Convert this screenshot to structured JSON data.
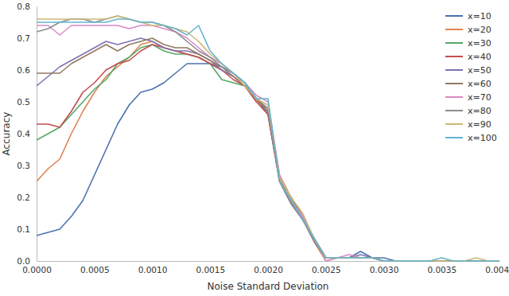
{
  "chart_data": {
    "type": "line",
    "x_label": "Noise Standard Deviation",
    "y_label": "Accuracy",
    "x": [
      0,
      0.0001,
      0.0002,
      0.0003,
      0.0004,
      0.0005,
      0.0006,
      0.0007,
      0.0008,
      0.0009,
      0.001,
      0.0011,
      0.0012,
      0.0013,
      0.0014,
      0.0015,
      0.0016,
      0.0017,
      0.0018,
      0.0019,
      0.002,
      0.0021,
      0.0022,
      0.0023,
      0.0024,
      0.0025,
      0.0026,
      0.0027,
      0.0028,
      0.0029,
      0.003,
      0.0031,
      0.0032,
      0.0033,
      0.0034,
      0.0035,
      0.0036,
      0.0037,
      0.0038,
      0.0039,
      0.004
    ],
    "xlim": [
      0,
      0.004
    ],
    "xticks": [
      {
        "value": 0,
        "label": "0.0000"
      },
      0.0005,
      {
        "value": 0.001,
        "label": "0.0010"
      },
      0.0015,
      {
        "value": 0.002,
        "label": "0.0020"
      },
      0.0025,
      {
        "value": 0.003,
        "label": "0.0030"
      },
      0.0035,
      {
        "value": 0.004,
        "label": "0.0040"
      }
    ],
    "ylim": [
      0,
      0.8
    ],
    "yticks": [
      {
        "value": 0,
        "label": "0.0"
      },
      0.1,
      0.2,
      0.3,
      0.4,
      0.5,
      0.6,
      0.7,
      0.8
    ],
    "grid": false,
    "legend": "upper right",
    "series": [
      {
        "name": "x=10",
        "color": "#4c72b0",
        "values": [
          0.08,
          0.09,
          0.1,
          0.14,
          0.19,
          0.27,
          0.35,
          0.43,
          0.49,
          0.53,
          0.54,
          0.56,
          0.59,
          0.62,
          0.62,
          0.62,
          0.61,
          0.59,
          0.56,
          0.51,
          0.46,
          0.25,
          0.18,
          0.13,
          0.07,
          0.01,
          0.01,
          0.01,
          0.03,
          0.01,
          0.01,
          0,
          0,
          0,
          0,
          0,
          0,
          0,
          0,
          0,
          0
        ]
      },
      {
        "name": "x=20",
        "color": "#dd8452",
        "values": [
          0.25,
          0.29,
          0.32,
          0.4,
          0.47,
          0.53,
          0.58,
          0.61,
          0.64,
          0.68,
          0.69,
          0.67,
          0.66,
          0.65,
          0.64,
          0.62,
          0.6,
          0.58,
          0.55,
          0.5,
          0.48,
          0.27,
          0.2,
          0.14,
          0.06,
          0,
          0.01,
          0.01,
          0.01,
          0.01,
          0,
          0,
          0,
          0,
          0,
          0,
          0,
          0,
          0,
          0,
          0
        ]
      },
      {
        "name": "x=30",
        "color": "#55a868",
        "values": [
          0.38,
          0.4,
          0.42,
          0.46,
          0.5,
          0.54,
          0.57,
          0.62,
          0.64,
          0.67,
          0.68,
          0.66,
          0.65,
          0.65,
          0.64,
          0.62,
          0.57,
          0.56,
          0.55,
          0.51,
          0.47,
          0.26,
          0.19,
          0.13,
          0.07,
          0.01,
          0.01,
          0.01,
          0.01,
          0.01,
          0,
          0,
          0,
          0,
          0,
          0,
          0,
          0,
          0,
          0,
          0
        ]
      },
      {
        "name": "x=40",
        "color": "#c44e52",
        "values": [
          0.43,
          0.43,
          0.42,
          0.47,
          0.53,
          0.56,
          0.6,
          0.62,
          0.63,
          0.66,
          0.68,
          0.67,
          0.66,
          0.65,
          0.64,
          0.62,
          0.6,
          0.57,
          0.55,
          0.5,
          0.46,
          0.25,
          0.18,
          0.13,
          0.06,
          0.01,
          0.01,
          0.01,
          0.01,
          0.01,
          0,
          0,
          0,
          0,
          0,
          0,
          0,
          0,
          0,
          0,
          0
        ]
      },
      {
        "name": "x=50",
        "color": "#8172b3",
        "values": [
          0.55,
          0.58,
          0.61,
          0.63,
          0.65,
          0.67,
          0.69,
          0.68,
          0.69,
          0.7,
          0.69,
          0.67,
          0.66,
          0.66,
          0.65,
          0.63,
          0.6,
          0.58,
          0.55,
          0.51,
          0.47,
          0.26,
          0.19,
          0.13,
          0.07,
          0.01,
          0.01,
          0.01,
          0.02,
          0.01,
          0,
          0,
          0,
          0,
          0,
          0,
          0,
          0,
          0,
          0,
          0
        ]
      },
      {
        "name": "x=60",
        "color": "#937860",
        "values": [
          0.59,
          0.59,
          0.59,
          0.62,
          0.64,
          0.66,
          0.68,
          0.66,
          0.68,
          0.69,
          0.7,
          0.68,
          0.67,
          0.67,
          0.65,
          0.63,
          0.61,
          0.58,
          0.55,
          0.51,
          0.47,
          0.25,
          0.2,
          0.14,
          0.07,
          0.01,
          0.01,
          0.01,
          0.01,
          0.01,
          0,
          0,
          0,
          0,
          0,
          0,
          0,
          0,
          0,
          0,
          0
        ]
      },
      {
        "name": "x=70",
        "color": "#da8bc3",
        "values": [
          0.74,
          0.74,
          0.71,
          0.74,
          0.74,
          0.74,
          0.74,
          0.74,
          0.73,
          0.74,
          0.74,
          0.73,
          0.72,
          0.7,
          0.67,
          0.64,
          0.62,
          0.59,
          0.56,
          0.52,
          0.5,
          0.27,
          0.19,
          0.14,
          0.07,
          0,
          0.01,
          0.02,
          0.01,
          0.01,
          0,
          0,
          0,
          0,
          0,
          0,
          0,
          0,
          0,
          0,
          0
        ]
      },
      {
        "name": "x=80",
        "color": "#8c8c8c",
        "values": [
          0.72,
          0.73,
          0.75,
          0.76,
          0.76,
          0.75,
          0.76,
          0.77,
          0.76,
          0.75,
          0.75,
          0.74,
          0.72,
          0.69,
          0.66,
          0.64,
          0.61,
          0.59,
          0.56,
          0.51,
          0.48,
          0.25,
          0.18,
          0.13,
          0.06,
          0.01,
          0.01,
          0.01,
          0.01,
          0.01,
          0,
          0,
          0,
          0,
          0,
          0,
          0,
          0,
          0,
          0,
          0
        ]
      },
      {
        "name": "x=90",
        "color": "#ccb974",
        "values": [
          0.76,
          0.76,
          0.76,
          0.76,
          0.76,
          0.76,
          0.76,
          0.77,
          0.76,
          0.75,
          0.74,
          0.74,
          0.73,
          0.72,
          0.69,
          0.65,
          0.62,
          0.59,
          0.55,
          0.51,
          0.49,
          0.26,
          0.2,
          0.15,
          0.07,
          0.01,
          0.01,
          0.01,
          0.01,
          0.01,
          0,
          0,
          0,
          0,
          0,
          0,
          0,
          0,
          0.01,
          0,
          0
        ]
      },
      {
        "name": "x=100",
        "color": "#64b5cd",
        "values": [
          0.75,
          0.75,
          0.75,
          0.75,
          0.75,
          0.75,
          0.75,
          0.76,
          0.76,
          0.75,
          0.75,
          0.74,
          0.73,
          0.71,
          0.74,
          0.66,
          0.62,
          0.59,
          0.56,
          0.51,
          0.51,
          0.25,
          0.19,
          0.13,
          0.07,
          0.01,
          0.01,
          0.01,
          0.01,
          0.01,
          0,
          0,
          0,
          0,
          0,
          0.01,
          0,
          0,
          0,
          0,
          0
        ]
      }
    ]
  }
}
